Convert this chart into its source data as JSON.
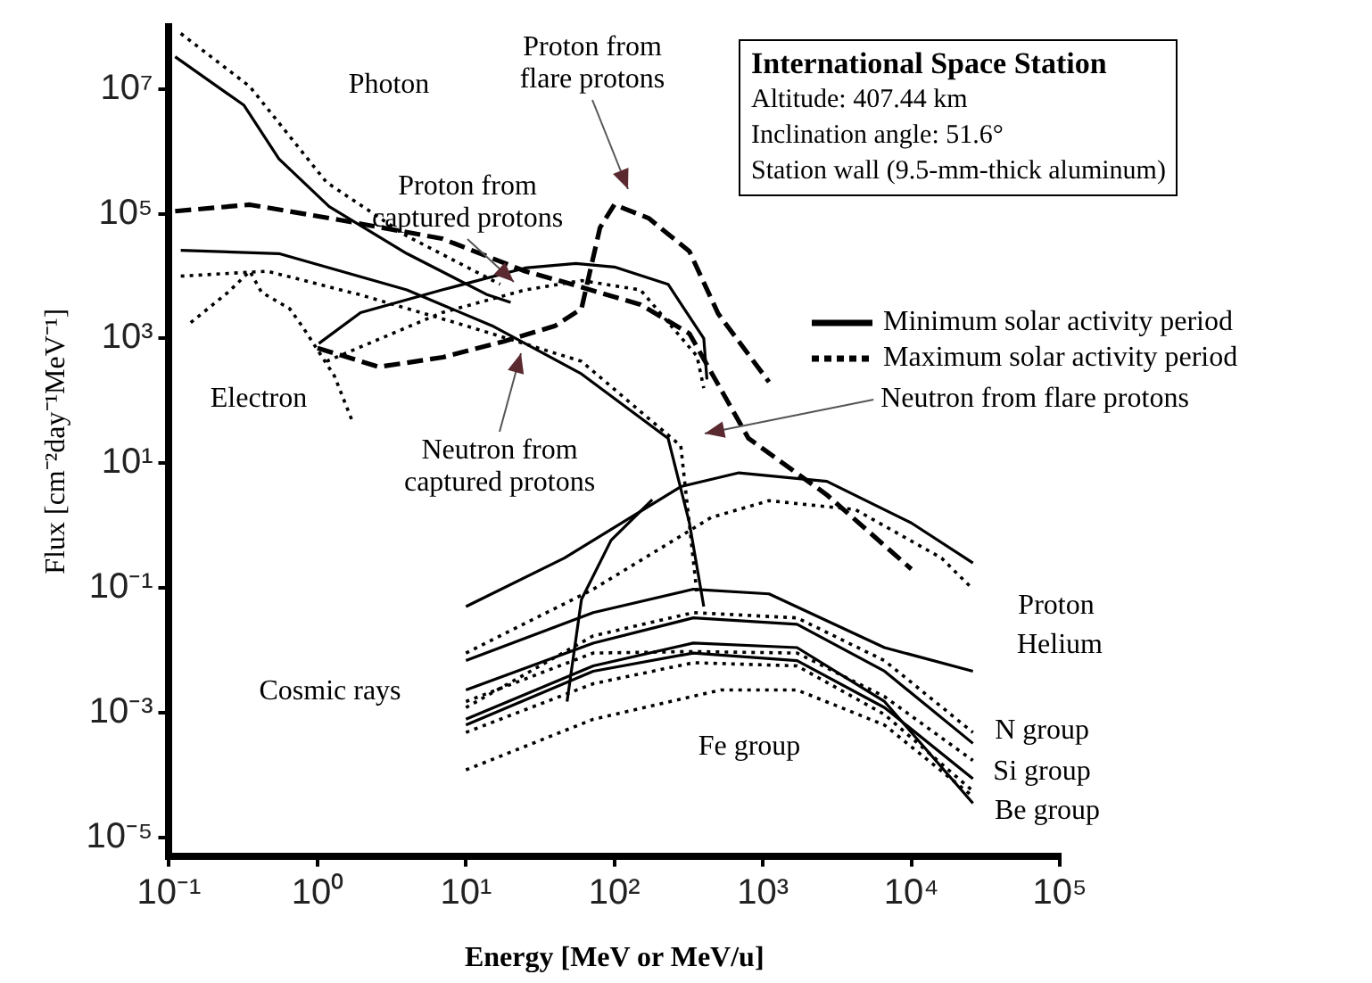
{
  "chart_data": {
    "type": "line",
    "title": "International Space Station",
    "xlabel": "Energy [MeV or MeV/u]",
    "ylabel": "Flux [cm⁻²day⁻¹MeV⁻¹]",
    "log": "xy",
    "grid": false,
    "marker": "none",
    "legend": "top right",
    "xlim": [
      0.1,
      100000
    ],
    "ylim": [
      5e-06,
      100000000
    ],
    "xticks": [
      {
        "value": 0.1,
        "label": "10⁻¹"
      },
      {
        "value": 1,
        "label": "10⁰"
      },
      {
        "value": 10,
        "label": "10¹"
      },
      {
        "value": 100,
        "label": "10²"
      },
      {
        "value": 1000,
        "label": "10³"
      },
      {
        "value": 10000,
        "label": "10⁴"
      },
      {
        "value": 100000,
        "label": "10⁵"
      }
    ],
    "yticks": [
      {
        "value": 1e-05,
        "label": "10⁻⁵"
      },
      {
        "value": 0.001,
        "label": "10⁻³"
      },
      {
        "value": 0.1,
        "label": "10⁻¹"
      },
      {
        "value": 10,
        "label": "10¹"
      },
      {
        "value": 1000,
        "label": "10³"
      },
      {
        "value": 100000,
        "label": "10⁵"
      },
      {
        "value": 10000000,
        "label": "10⁷"
      }
    ],
    "annotations": [
      "Altitude: 407.44 km",
      "Inclination angle: 51.6°",
      "Station wall (9.5-mm-thick aluminum)",
      "Photon",
      "Electron",
      "Cosmic rays",
      "Fe group",
      "Proton",
      "Helium",
      "N group",
      "Si group",
      "Be group",
      "Proton from flare protons",
      "Proton from captured protons",
      "Neutron from captured protons",
      "Neutron from flare protons"
    ],
    "series": [
      {
        "name": "Minimum solar activity period",
        "color": "#000000",
        "line_style": "solid",
        "x": [
          0.11,
          0.32,
          0.55,
          1.2,
          4,
          14,
          20
        ],
        "values": [
          33000000,
          5500000,
          760000,
          130000,
          23000,
          5000,
          3800
        ]
      },
      {
        "name": "Maximum solar activity period",
        "color": "#000000",
        "line_style": "dotted",
        "x": [
          0.12,
          0.35,
          1.15,
          4,
          17
        ],
        "values": [
          78000000,
          11000000,
          320000,
          44000,
          7400
        ]
      },
      {
        "color": "#000000",
        "line_style": "solid",
        "x": [
          0.12,
          0.55,
          4,
          15,
          60,
          230,
          320,
          400
        ],
        "values": [
          26000,
          23000,
          6000,
          1600,
          270,
          25,
          1.1,
          0.05
        ]
      },
      {
        "color": "#000000",
        "line_style": "dotted",
        "x": [
          0.12,
          0.46,
          1.95,
          10,
          60,
          280,
          360
        ],
        "values": [
          10000,
          12000,
          5000,
          1600,
          430,
          19,
          0.08
        ]
      },
      {
        "color": "#000000",
        "line_style": "solid",
        "x": [
          1.02,
          1.95,
          6.9,
          25,
          55,
          100,
          230,
          400,
          420
        ],
        "values": [
          830,
          2600,
          6000,
          13500,
          16000,
          14000,
          7400,
          1000,
          220
        ]
      },
      {
        "color": "#000000",
        "line_style": "dotted",
        "x": [
          1.15,
          6.9,
          25,
          60,
          150,
          360,
          400
        ],
        "values": [
          430,
          2600,
          6000,
          8500,
          6000,
          520,
          160
        ]
      },
      {
        "color": "#000000",
        "line_style": "dotted",
        "x": [
          0.14,
          0.25,
          0.35,
          0.42,
          0.65,
          0.8,
          1.3,
          1.7
        ],
        "values": [
          1800,
          5500,
          12000,
          5500,
          3000,
          1500,
          250,
          50
        ]
      },
      {
        "color": "#000000",
        "line_style": "dashed",
        "x": [
          0.11,
          0.35,
          1.4,
          6.9,
          25,
          46,
          150,
          320,
          800,
          2700,
          10000
        ],
        "values": [
          110000,
          140000,
          80000,
          40000,
          12000,
          8000,
          3500,
          1200,
          25,
          3.1,
          0.2
        ]
      },
      {
        "color": "#000000",
        "line_style": "dashed",
        "x": [
          1,
          2.6,
          7,
          18,
          40,
          60,
          80,
          100,
          170,
          320,
          500,
          1100
        ],
        "values": [
          700,
          350,
          500,
          900,
          1600,
          3000,
          60000,
          140000,
          85000,
          25000,
          2500,
          200
        ]
      },
      {
        "color": "#000000",
        "line_style": "solid",
        "x": [
          10,
          46,
          280,
          690,
          2700,
          10000,
          26000
        ],
        "values": [
          0.05,
          0.3,
          4.2,
          7,
          5.1,
          1.1,
          0.25
        ]
      },
      {
        "color": "#000000",
        "line_style": "dotted",
        "x": [
          10,
          72,
          450,
          1100,
          4200,
          16000,
          26000
        ],
        "values": [
          0.009,
          0.095,
          1.35,
          2.5,
          1.8,
          0.3,
          0.095
        ]
      },
      {
        "color": "#000000",
        "line_style": "solid",
        "x": [
          10,
          72,
          340,
          1100,
          6600,
          26000
        ],
        "values": [
          0.0068,
          0.04,
          0.095,
          0.08,
          0.011,
          0.0046
        ]
      },
      {
        "color": "#000000",
        "line_style": "dotted",
        "x": [
          10,
          72,
          340,
          1700,
          6600,
          26000
        ],
        "values": [
          0.0012,
          0.017,
          0.04,
          0.033,
          0.0068,
          0.00048
        ]
      },
      {
        "color": "#000000",
        "line_style": "solid",
        "x": [
          10,
          72,
          340,
          1700,
          6600,
          26000
        ],
        "values": [
          0.0023,
          0.013,
          0.033,
          0.026,
          0.0046,
          0.00032
        ]
      },
      {
        "color": "#000000",
        "line_style": "dotted",
        "x": [
          10,
          72,
          340,
          1700,
          6600,
          26000
        ],
        "values": [
          0.0015,
          0.009,
          0.0095,
          0.009,
          0.0018,
          0.00017
        ]
      },
      {
        "color": "#000000",
        "line_style": "solid",
        "x": [
          10,
          72,
          340,
          1700,
          6600,
          26000
        ],
        "values": [
          0.00063,
          0.0046,
          0.009,
          0.0068,
          0.0012,
          8.7e-05
        ]
      },
      {
        "color": "#000000",
        "line_style": "dotted",
        "x": [
          10,
          72,
          340,
          1700,
          6600,
          26000
        ],
        "values": [
          0.00048,
          0.0029,
          0.0063,
          0.0056,
          0.00093,
          5.5e-05
        ]
      },
      {
        "color": "#000000",
        "line_style": "solid",
        "x": [
          10,
          72,
          340,
          1700,
          6600,
          26000
        ],
        "values": [
          0.00078,
          0.0056,
          0.013,
          0.011,
          0.0015,
          3.5e-05
        ]
      },
      {
        "color": "#000000",
        "line_style": "dotted",
        "x": [
          10,
          72,
          520,
          1700,
          6600,
          26000
        ],
        "values": [
          0.00012,
          0.00078,
          0.0023,
          0.0023,
          0.00063,
          4.5e-05
        ]
      },
      {
        "color": "#000000",
        "line_style": "solid",
        "x": [
          48,
          60,
          95,
          180
        ],
        "values": [
          0.0015,
          0.065,
          0.58,
          2.6
        ]
      }
    ]
  }
}
